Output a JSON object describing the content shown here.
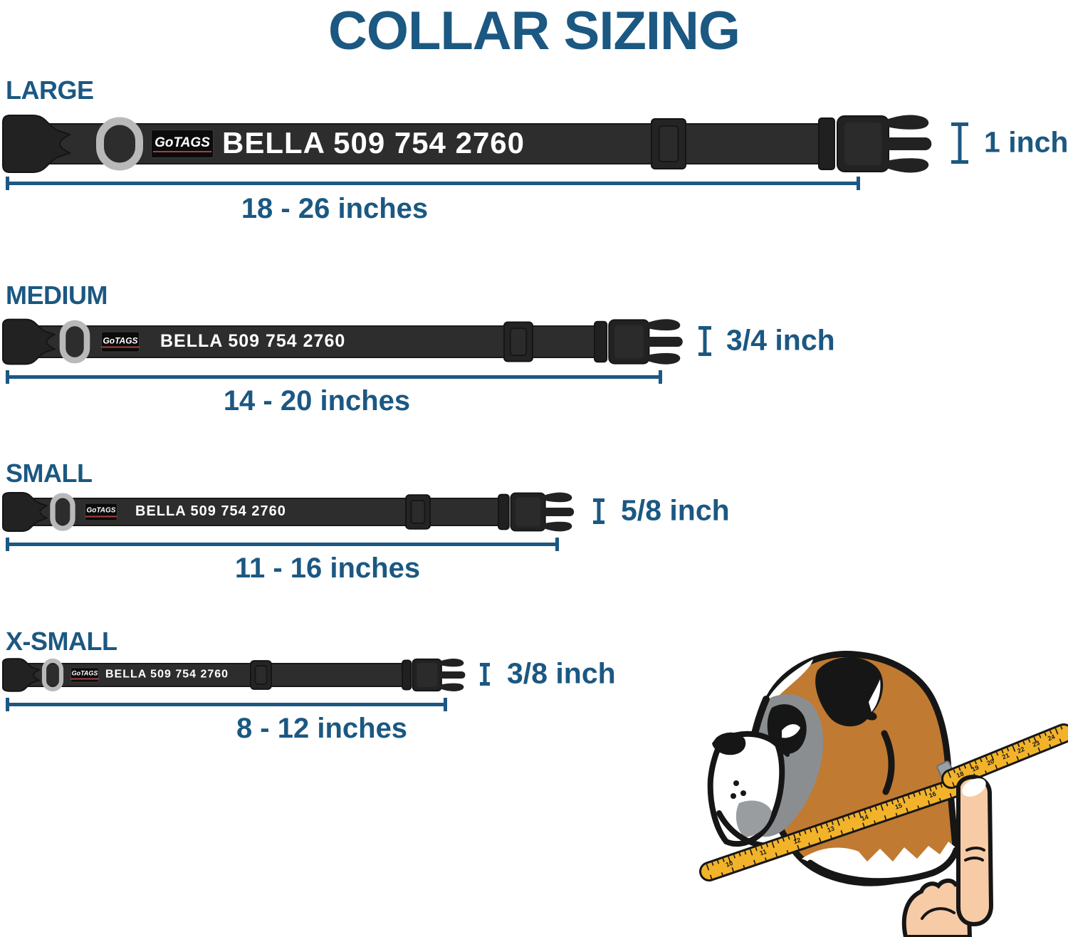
{
  "title": "COLLAR SIZING",
  "brand": "GoTAGS",
  "personalization": "BELLA 509 754 2760",
  "colors": {
    "accent_blue": "#1b5882",
    "collar_strap": "#2e2d2e",
    "buckle": "#222222",
    "d_ring": "#b9b9b9",
    "patch_underline_red": "#a84040",
    "tape_yellow": "#f2b32a",
    "dog_fur": "#c07a31",
    "dog_mask_gray": "#8b8e90",
    "hand_skin": "#f7cba6"
  },
  "sizes": [
    {
      "id": "large",
      "label": "LARGE",
      "width_label": "1 inch",
      "range_label": "18 - 26 inches"
    },
    {
      "id": "medium",
      "label": "MEDIUM",
      "width_label": "3/4 inch",
      "range_label": "14 - 20 inches"
    },
    {
      "id": "small",
      "label": "SMALL",
      "width_label": "5/8 inch",
      "range_label": "11 - 16 inches"
    },
    {
      "id": "xsmall",
      "label": "X-SMALL",
      "width_label": "3/8 inch",
      "range_label": "8 - 12 inches"
    }
  ],
  "dog": {
    "tape_numbers_lower": [
      "10",
      "11",
      "12",
      "13",
      "14",
      "15",
      "16"
    ],
    "tape_numbers_upper": [
      "18",
      "19",
      "20",
      "21",
      "22",
      "23",
      "24"
    ]
  }
}
